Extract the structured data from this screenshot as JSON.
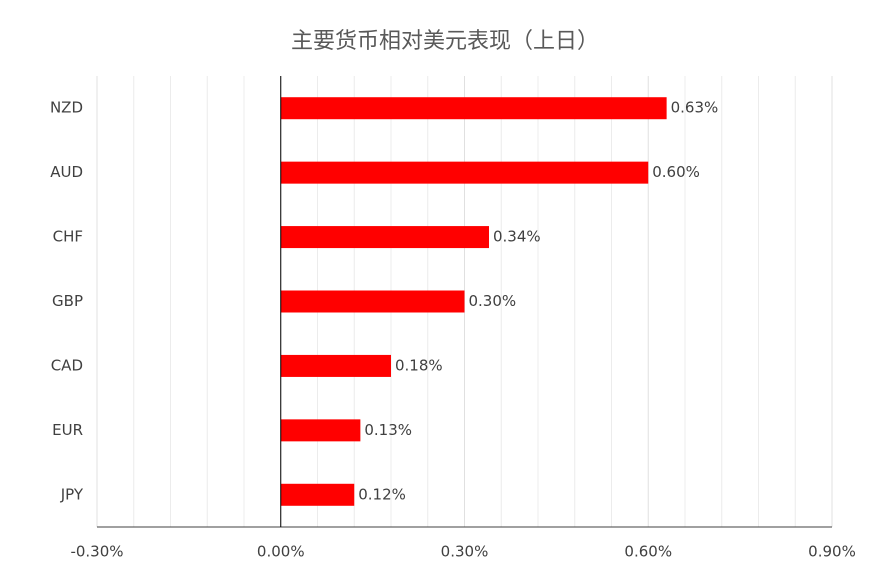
{
  "chart_data": {
    "type": "bar",
    "orientation": "horizontal",
    "title": "主要货币相对美元表现（上日）",
    "categories": [
      "NZD",
      "AUD",
      "CHF",
      "GBP",
      "CAD",
      "EUR",
      "JPY"
    ],
    "values": [
      0.63,
      0.6,
      0.34,
      0.3,
      0.18,
      0.13,
      0.12
    ],
    "value_labels": [
      "0.63%",
      "0.60%",
      "0.34%",
      "0.30%",
      "0.18%",
      "0.13%",
      "0.12%"
    ],
    "color": "#ff0000",
    "xlim": [
      -0.3,
      0.9
    ],
    "xticks": [
      {
        "value": -0.3,
        "label": "-0.30%"
      },
      {
        "value": 0,
        "label": "0.00%"
      },
      {
        "value": 0.3,
        "label": "0.30%"
      },
      {
        "value": 0.6,
        "label": "0.60%"
      },
      {
        "value": 0.9,
        "label": "0.90%"
      }
    ],
    "xminorticks": [
      -0.24,
      -0.18,
      -0.12,
      -0.06,
      0.06,
      0.12,
      0.18,
      0.24,
      0.36,
      0.42,
      0.48,
      0.54,
      0.66,
      0.72,
      0.78,
      0.84
    ],
    "grid": true
  }
}
